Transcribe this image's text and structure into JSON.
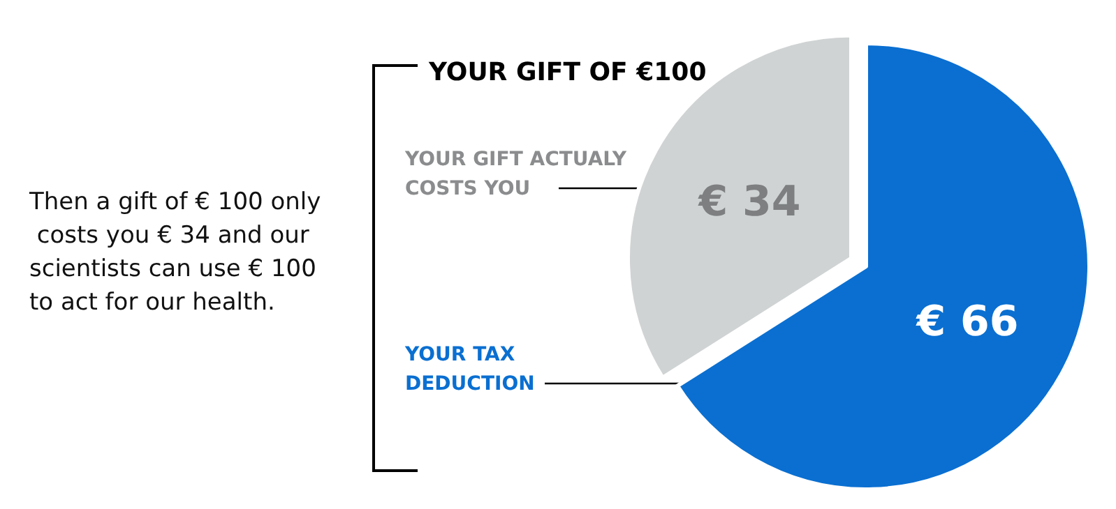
{
  "chart_data": {
    "type": "pie",
    "title": "YOUR GIFT OF €100",
    "categories": [
      "YOUR TAX DEDUCTION",
      "YOUR GIFT ACTUALY COSTS YOU"
    ],
    "values": [
      66,
      34
    ],
    "colors": [
      "#0a6fd1",
      "#d0d3d4"
    ],
    "value_labels": [
      "€ 66",
      "€ 34"
    ],
    "annotations": [
      "Then a gift of € 100 only costs you € 34 and our scientists can use € 100 to act for our health."
    ],
    "legend": false
  }
}
